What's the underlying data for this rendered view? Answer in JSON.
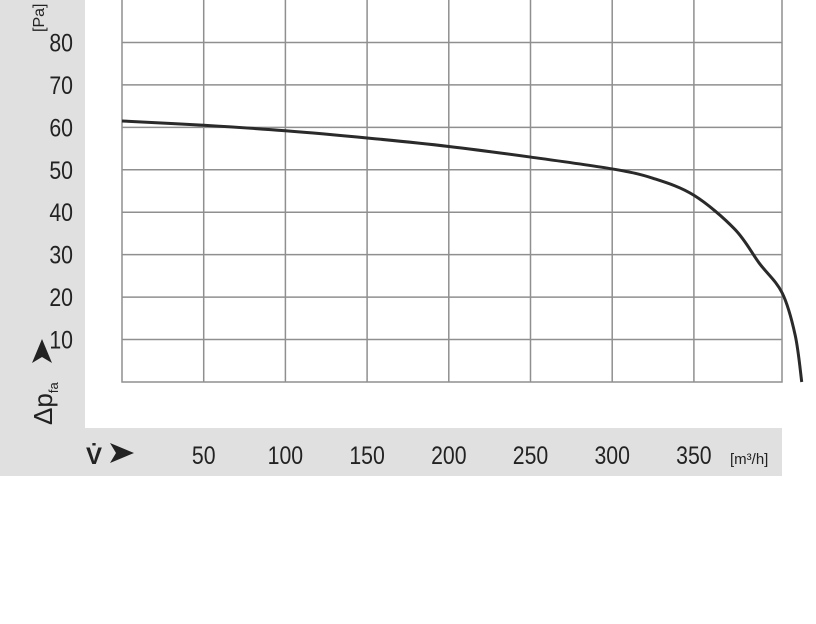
{
  "chart_data": {
    "type": "line",
    "title": "",
    "xlabel": "V̇",
    "xunit": "[m³/h]",
    "ylabel": "Δp",
    "ylabel_sub": "fa",
    "yunit": "[Pa]",
    "xlim": [
      0,
      404
    ],
    "ylim": [
      0,
      90
    ],
    "xticks": [
      50,
      100,
      150,
      200,
      250,
      300,
      350
    ],
    "yticks": [
      10,
      20,
      30,
      40,
      50,
      60,
      70,
      80
    ],
    "grid": true,
    "series": [
      {
        "x": [
          0,
          50,
          100,
          150,
          200,
          250,
          300,
          325,
          350,
          375,
          390,
          404,
          412,
          416
        ],
        "y": [
          61.5,
          60.5,
          59.2,
          57.5,
          55.5,
          53,
          50.2,
          48,
          44,
          36,
          28,
          21,
          11,
          0
        ]
      }
    ],
    "colors": {
      "curve": "#2a2a2a",
      "grid": "#8f8f8f",
      "band": "#e0e0e0"
    }
  }
}
